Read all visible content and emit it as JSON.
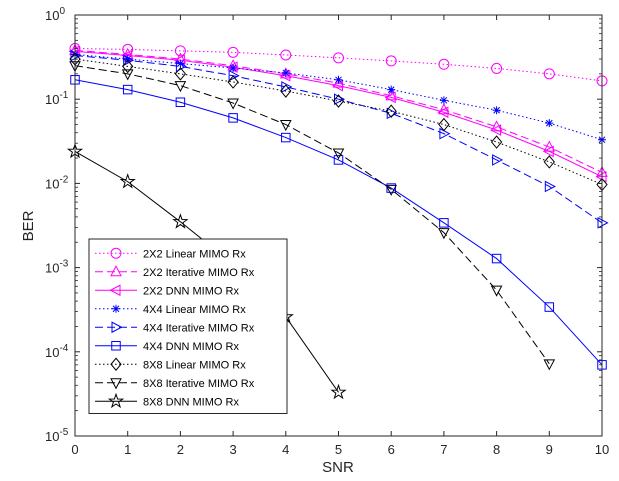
{
  "chart_data": {
    "type": "line",
    "xlabel": "SNR",
    "ylabel": "BER",
    "xlim": [
      0,
      10
    ],
    "ylim": [
      1e-05,
      1
    ],
    "yscale": "log",
    "grid": false,
    "legend_position": "bottom-left",
    "x_ticks": [
      "0",
      "1",
      "2",
      "3",
      "4",
      "5",
      "6",
      "7",
      "8",
      "9",
      "10"
    ],
    "y_ticks": [
      {
        "base": "10",
        "exp": "0",
        "value": 1
      },
      {
        "base": "10",
        "exp": "-1",
        "value": 0.1
      },
      {
        "base": "10",
        "exp": "-2",
        "value": 0.01
      },
      {
        "base": "10",
        "exp": "-3",
        "value": 0.001
      },
      {
        "base": "10",
        "exp": "-4",
        "value": 0.0001
      },
      {
        "base": "10",
        "exp": "-5",
        "value": 1e-05
      }
    ],
    "series": [
      {
        "name": "2X2 Linear MIMO Rx",
        "color": "#ff00ff",
        "dash": "dotted",
        "marker": "circle",
        "x": [
          0,
          1,
          2,
          3,
          4,
          5,
          6,
          7,
          8,
          9,
          10
        ],
        "y": [
          0.4,
          0.39,
          0.375,
          0.36,
          0.335,
          0.31,
          0.285,
          0.26,
          0.232,
          0.2,
          0.165
        ]
      },
      {
        "name": "2X2 Iterative MIMO Rx",
        "color": "#ff00ff",
        "dash": "dashed",
        "marker": "triangle-up",
        "x": [
          0,
          1,
          2,
          3,
          4,
          5,
          6,
          7,
          8,
          9,
          10
        ],
        "y": [
          0.38,
          0.34,
          0.3,
          0.25,
          0.2,
          0.155,
          0.11,
          0.075,
          0.047,
          0.027,
          0.0135
        ]
      },
      {
        "name": "2X2 DNN MIMO Rx",
        "color": "#ff00ff",
        "dash": "solid",
        "marker": "triangle-left",
        "x": [
          0,
          1,
          2,
          3,
          4,
          5,
          6,
          7,
          8,
          9,
          10
        ],
        "y": [
          0.37,
          0.33,
          0.29,
          0.24,
          0.19,
          0.145,
          0.105,
          0.07,
          0.043,
          0.024,
          0.012
        ]
      },
      {
        "name": "4X4 Linear MIMO Rx",
        "color": "#0000ff",
        "dash": "dotted",
        "marker": "asterisk",
        "x": [
          0,
          1,
          2,
          3,
          4,
          5,
          6,
          7,
          8,
          9,
          10
        ],
        "y": [
          0.34,
          0.3,
          0.265,
          0.235,
          0.205,
          0.17,
          0.13,
          0.097,
          0.074,
          0.052,
          0.033
        ]
      },
      {
        "name": "4X4 Iterative MIMO Rx",
        "color": "#0000ff",
        "dash": "dashed",
        "marker": "triangle-right",
        "x": [
          0,
          1,
          2,
          3,
          4,
          5,
          6,
          7,
          8,
          9,
          10
        ],
        "y": [
          0.33,
          0.29,
          0.245,
          0.19,
          0.14,
          0.1,
          0.068,
          0.039,
          0.019,
          0.0092,
          0.0034
        ]
      },
      {
        "name": "4X4 DNN MIMO Rx",
        "color": "#0000ff",
        "dash": "solid",
        "marker": "square",
        "x": [
          0,
          1,
          2,
          3,
          4,
          5,
          6,
          7,
          8,
          9,
          10
        ],
        "y": [
          0.17,
          0.13,
          0.092,
          0.06,
          0.035,
          0.019,
          0.0088,
          0.0034,
          0.00128,
          0.00034,
          7e-05
        ]
      },
      {
        "name": "8X8 Linear MIMO Rx",
        "color": "#000000",
        "dash": "dotted",
        "marker": "diamond",
        "x": [
          0,
          1,
          2,
          3,
          4,
          5,
          6,
          7,
          8,
          9,
          10
        ],
        "y": [
          0.3,
          0.245,
          0.2,
          0.16,
          0.125,
          0.095,
          0.072,
          0.05,
          0.031,
          0.018,
          0.0097
        ]
      },
      {
        "name": "8X8 Iterative MIMO Rx",
        "color": "#000000",
        "dash": "dashed",
        "marker": "triangle-down",
        "x": [
          0,
          1,
          2,
          3,
          4,
          5,
          6,
          7,
          8,
          9
        ],
        "y": [
          0.25,
          0.2,
          0.145,
          0.09,
          0.05,
          0.023,
          0.0085,
          0.0026,
          0.00054,
          7.2e-05
        ]
      },
      {
        "name": "8X8 DNN MIMO Rx",
        "color": "#000000",
        "dash": "solid",
        "marker": "star",
        "x": [
          0,
          1,
          2,
          3,
          4,
          5
        ],
        "y": [
          0.024,
          0.0105,
          0.0035,
          0.0011,
          0.00026,
          3.3e-05
        ]
      }
    ]
  }
}
